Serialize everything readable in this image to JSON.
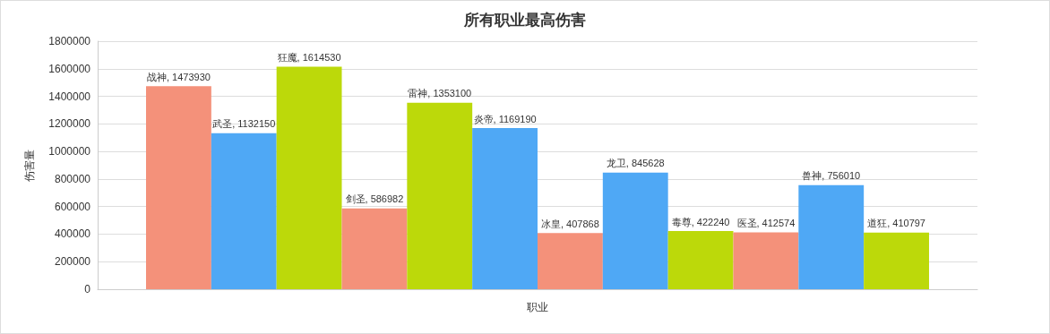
{
  "chart_data": {
    "type": "bar",
    "title": "所有职业最高伤害",
    "xlabel": "职业",
    "ylabel": "伤害量",
    "categories": [
      null
    ],
    "series": [
      {
        "color": "#f4917a",
        "values": [
          1473930
        ],
        "value_labels": [
          "战神, 1473930"
        ]
      },
      {
        "color": "#4fa8f5",
        "values": [
          1132150
        ],
        "value_labels": [
          "武圣, 1132150"
        ]
      },
      {
        "color": "#bcd90a",
        "values": [
          1614530
        ],
        "value_labels": [
          "狂魔, 1614530"
        ]
      },
      {
        "color": "#f4917a",
        "values": [
          586982
        ],
        "value_labels": [
          "剑圣, 586982"
        ]
      },
      {
        "color": "#bcd90a",
        "values": [
          1353100
        ],
        "value_labels": [
          "雷神, 1353100"
        ]
      },
      {
        "color": "#4fa8f5",
        "values": [
          1169190
        ],
        "value_labels": [
          "炎帝, 1169190"
        ]
      },
      {
        "color": "#f4917a",
        "values": [
          407868
        ],
        "value_labels": [
          "冰皇, 407868"
        ]
      },
      {
        "color": "#4fa8f5",
        "values": [
          845628
        ],
        "value_labels": [
          "龙卫, 845628"
        ]
      },
      {
        "color": "#bcd90a",
        "values": [
          422240
        ],
        "value_labels": [
          "毒尊, 422240"
        ]
      },
      {
        "color": "#f4917a",
        "values": [
          412574
        ],
        "value_labels": [
          "医圣, 412574"
        ]
      },
      {
        "color": "#4fa8f5",
        "values": [
          756010
        ],
        "value_labels": [
          "兽神, 756010"
        ]
      },
      {
        "color": "#bcd90a",
        "values": [
          410797
        ],
        "value_labels": [
          "道狂, 410797"
        ]
      }
    ],
    "ylim": [
      0,
      1800000
    ],
    "yticks": [
      0,
      200000,
      400000,
      600000,
      800000,
      1000000,
      1200000,
      1400000,
      1600000,
      1800000
    ],
    "grid": "y"
  }
}
